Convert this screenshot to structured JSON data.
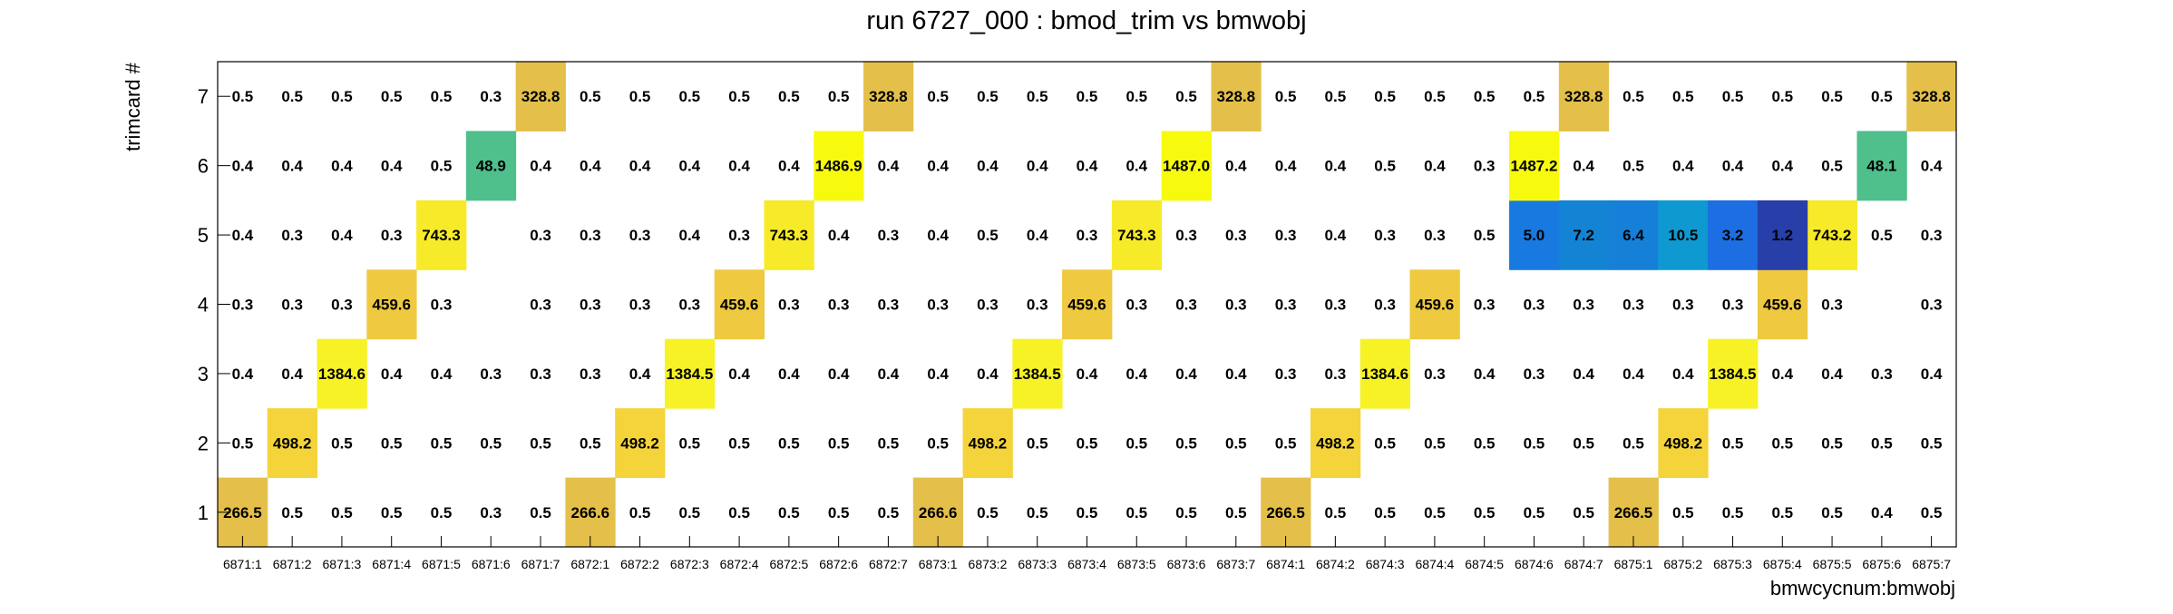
{
  "chart_data": {
    "type": "heatmap",
    "title": "run 6727_000 : bmod_trim vs bmwobj",
    "xlabel": "bmwcycnum:bmwobj",
    "ylabel": "trimcard #",
    "x_categories": [
      "6871:1",
      "6871:2",
      "6871:3",
      "6871:4",
      "6871:5",
      "6871:6",
      "6871:7",
      "6872:1",
      "6872:2",
      "6872:3",
      "6872:4",
      "6872:5",
      "6872:6",
      "6872:7",
      "6873:1",
      "6873:2",
      "6873:3",
      "6873:4",
      "6873:5",
      "6873:6",
      "6873:7",
      "6874:1",
      "6874:2",
      "6874:3",
      "6874:4",
      "6874:5",
      "6874:6",
      "6874:7",
      "6875:1",
      "6875:2",
      "6875:3",
      "6875:4",
      "6875:5",
      "6875:6",
      "6875:7"
    ],
    "y_categories": [
      "1",
      "2",
      "3",
      "4",
      "5",
      "6",
      "7"
    ],
    "rows": [
      {
        "y": "1",
        "labels": [
          "266.5",
          "0.5",
          "0.5",
          "0.5",
          "0.5",
          "0.3",
          "0.5",
          "266.6",
          "0.5",
          "0.5",
          "0.5",
          "0.5",
          "0.5",
          "0.5",
          "266.6",
          "0.5",
          "0.5",
          "0.5",
          "0.5",
          "0.5",
          "0.5",
          "266.5",
          "0.5",
          "0.5",
          "0.5",
          "0.5",
          "0.5",
          "0.5",
          "266.5",
          "0.5",
          "0.5",
          "0.5",
          "0.5",
          "0.4",
          "0.5"
        ]
      },
      {
        "y": "2",
        "labels": [
          "0.5",
          "498.2",
          "0.5",
          "0.5",
          "0.5",
          "0.5",
          "0.5",
          "0.5",
          "498.2",
          "0.5",
          "0.5",
          "0.5",
          "0.5",
          "0.5",
          "0.5",
          "498.2",
          "0.5",
          "0.5",
          "0.5",
          "0.5",
          "0.5",
          "0.5",
          "498.2",
          "0.5",
          "0.5",
          "0.5",
          "0.5",
          "0.5",
          "0.5",
          "498.2",
          "0.5",
          "0.5",
          "0.5",
          "0.5",
          "0.5"
        ]
      },
      {
        "y": "3",
        "labels": [
          "0.4",
          "0.4",
          "1384.6",
          "0.4",
          "0.4",
          "0.3",
          "0.3",
          "0.3",
          "0.4",
          "1384.5",
          "0.4",
          "0.4",
          "0.4",
          "0.4",
          "0.4",
          "0.4",
          "1384.5",
          "0.4",
          "0.4",
          "0.4",
          "0.4",
          "0.3",
          "0.3",
          "1384.6",
          "0.3",
          "0.4",
          "0.3",
          "0.4",
          "0.4",
          "0.4",
          "1384.5",
          "0.4",
          "0.4",
          "0.3",
          "0.4"
        ]
      },
      {
        "y": "4",
        "labels": [
          "0.3",
          "0.3",
          "0.3",
          "459.6",
          "0.3",
          "",
          "0.3",
          "0.3",
          "0.3",
          "0.3",
          "459.6",
          "0.3",
          "0.3",
          "0.3",
          "0.3",
          "0.3",
          "0.3",
          "459.6",
          "0.3",
          "0.3",
          "0.3",
          "0.3",
          "0.3",
          "0.3",
          "459.6",
          "0.3",
          "0.3",
          "0.3",
          "0.3",
          "0.3",
          "0.3",
          "459.6",
          "0.3",
          "",
          "0.3"
        ]
      },
      {
        "y": "5",
        "labels": [
          "0.4",
          "0.3",
          "0.4",
          "0.3",
          "743.3",
          "",
          "0.3",
          "0.3",
          "0.3",
          "0.4",
          "0.3",
          "743.3",
          "0.4",
          "0.3",
          "0.4",
          "0.5",
          "0.4",
          "0.3",
          "743.3",
          "0.3",
          "0.3",
          "0.3",
          "0.4",
          "0.3",
          "0.3",
          "0.5",
          "5.0",
          "7.2",
          "6.4",
          "10.5",
          "3.2",
          "1.2",
          "743.2",
          "0.5",
          "0.3"
        ]
      },
      {
        "y": "6",
        "labels": [
          "0.4",
          "0.4",
          "0.4",
          "0.4",
          "0.5",
          "48.9",
          "0.4",
          "0.4",
          "0.4",
          "0.4",
          "0.4",
          "0.4",
          "1486.9",
          "0.4",
          "0.4",
          "0.4",
          "0.4",
          "0.4",
          "0.4",
          "1487.0",
          "0.4",
          "0.4",
          "0.4",
          "0.5",
          "0.4",
          "0.3",
          "1487.2",
          "0.4",
          "0.5",
          "0.4",
          "0.4",
          "0.4",
          "0.5",
          "48.1",
          "0.4"
        ]
      },
      {
        "y": "7",
        "labels": [
          "0.5",
          "0.5",
          "0.5",
          "0.5",
          "0.5",
          "0.3",
          "328.8",
          "0.5",
          "0.5",
          "0.5",
          "0.5",
          "0.5",
          "0.5",
          "328.8",
          "0.5",
          "0.5",
          "0.5",
          "0.5",
          "0.5",
          "0.5",
          "328.8",
          "0.5",
          "0.5",
          "0.5",
          "0.5",
          "0.5",
          "0.5",
          "328.8",
          "0.5",
          "0.5",
          "0.5",
          "0.5",
          "0.5",
          "0.5",
          "328.8"
        ]
      }
    ],
    "highlighted_cells": [
      {
        "row": "1",
        "cols": [
          0,
          7,
          14,
          21,
          28
        ],
        "color": "#e4c04a"
      },
      {
        "row": "2",
        "cols": [
          1,
          8,
          15,
          22,
          29
        ],
        "color": "#f4d43a"
      },
      {
        "row": "3",
        "cols": [
          2,
          9,
          16,
          23,
          30
        ],
        "color": "#f7f226"
      },
      {
        "row": "4",
        "cols": [
          3,
          10,
          17,
          24,
          31
        ],
        "color": "#efc940"
      },
      {
        "row": "5",
        "cols": [
          4,
          11,
          18,
          32
        ],
        "color": "#f7ea28"
      },
      {
        "row": "5",
        "cols": [
          26
        ],
        "color": "#1879e0"
      },
      {
        "row": "5",
        "cols": [
          27
        ],
        "color": "#1384d4"
      },
      {
        "row": "5",
        "cols": [
          28
        ],
        "color": "#1680d8"
      },
      {
        "row": "5",
        "cols": [
          29
        ],
        "color": "#0e9ad0"
      },
      {
        "row": "5",
        "cols": [
          30
        ],
        "color": "#1c6ee2"
      },
      {
        "row": "5",
        "cols": [
          31
        ],
        "color": "#283ea8"
      },
      {
        "row": "6",
        "cols": [
          12,
          19,
          26
        ],
        "color": "#f8fa0e"
      },
      {
        "row": "6",
        "cols": [
          5,
          33
        ],
        "color": "#4fbf8c"
      },
      {
        "row": "7",
        "cols": [
          6,
          13,
          20,
          27,
          34
        ],
        "color": "#e4c04a"
      }
    ],
    "grid": false,
    "legend": "none"
  }
}
